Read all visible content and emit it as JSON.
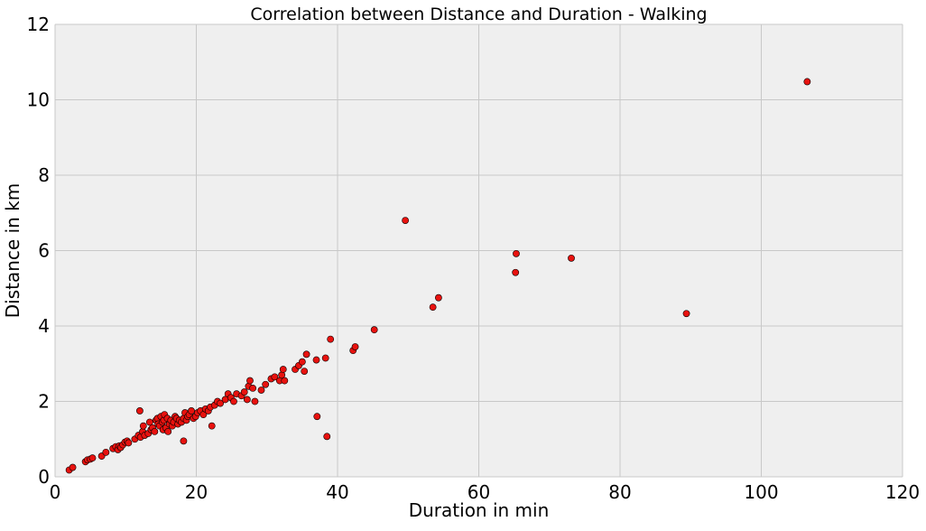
{
  "chart_data": {
    "type": "scatter",
    "title": "Correlation between Distance and Duration - Walking",
    "xlabel": "Duration in min",
    "ylabel": "Distance in km",
    "xlim": [
      0,
      120
    ],
    "ylim": [
      0,
      12
    ],
    "xticks": [
      0,
      20,
      40,
      60,
      80,
      100,
      120
    ],
    "yticks": [
      0,
      2,
      4,
      6,
      8,
      10,
      12
    ],
    "xtick_labels": [
      "0",
      "20",
      "40",
      "60",
      "80",
      "100",
      "120"
    ],
    "ytick_labels": [
      "0",
      "2",
      "4",
      "6",
      "8",
      "10",
      "12"
    ],
    "grid": true,
    "background_color": "#efefef",
    "marker_color": "#e8120f",
    "series": [
      {
        "name": "Walking",
        "x": [
          2.0,
          2.5,
          4.3,
          4.6,
          5.0,
          5.3,
          6.6,
          7.2,
          8.2,
          8.6,
          8.9,
          9.1,
          9.3,
          9.6,
          9.9,
          10.2,
          10.4,
          11.3,
          11.8,
          12.1,
          12.4,
          12.5,
          12.7,
          13.2,
          13.4,
          13.6,
          13.8,
          14.1,
          14.3,
          14.5,
          14.6,
          14.8,
          15.0,
          15.2,
          15.3,
          15.4,
          15.5,
          15.7,
          15.9,
          16.0,
          16.2,
          16.4,
          16.6,
          16.8,
          17.0,
          17.2,
          17.4,
          17.6,
          17.9,
          18.2,
          18.4,
          18.6,
          18.8,
          19.0,
          19.3,
          19.6,
          19.9,
          20.2,
          20.6,
          21.0,
          21.3,
          21.7,
          22.0,
          22.2,
          22.6,
          23.0,
          23.4,
          24.1,
          24.5,
          24.9,
          25.3,
          25.7,
          26.4,
          26.8,
          27.2,
          27.4,
          27.6,
          28.0,
          28.3,
          29.2,
          29.8,
          30.6,
          31.1,
          31.8,
          32.1,
          32.3,
          32.5,
          34.0,
          34.5,
          35.0,
          35.3,
          35.6,
          37.0,
          37.1,
          38.3,
          38.5,
          39.0,
          42.2,
          42.5,
          45.2,
          49.6,
          53.5,
          54.3,
          65.2,
          65.3,
          73.1,
          89.4,
          106.5,
          18.2,
          12.0
        ],
        "y": [
          0.18,
          0.25,
          0.4,
          0.45,
          0.47,
          0.5,
          0.55,
          0.65,
          0.75,
          0.8,
          0.72,
          0.82,
          0.78,
          0.85,
          0.92,
          0.95,
          0.9,
          1.0,
          1.1,
          1.05,
          1.2,
          1.35,
          1.1,
          1.15,
          1.45,
          1.25,
          1.3,
          1.2,
          1.5,
          1.55,
          1.4,
          1.35,
          1.6,
          1.45,
          1.25,
          1.5,
          1.65,
          1.3,
          1.55,
          1.2,
          1.4,
          1.5,
          1.35,
          1.45,
          1.6,
          1.55,
          1.4,
          1.5,
          1.45,
          1.55,
          1.7,
          1.5,
          1.6,
          1.65,
          1.75,
          1.55,
          1.6,
          1.7,
          1.75,
          1.65,
          1.8,
          1.75,
          1.85,
          1.35,
          1.9,
          2.0,
          1.95,
          2.05,
          2.2,
          2.1,
          2.0,
          2.2,
          2.15,
          2.25,
          2.05,
          2.4,
          2.55,
          2.35,
          2.0,
          2.3,
          2.45,
          2.6,
          2.65,
          2.55,
          2.7,
          2.85,
          2.55,
          2.85,
          2.95,
          3.05,
          2.8,
          3.25,
          3.1,
          1.6,
          3.15,
          1.07,
          3.65,
          3.35,
          3.45,
          3.9,
          6.8,
          4.5,
          4.75,
          5.42,
          5.92,
          5.8,
          4.33,
          10.48,
          0.95,
          1.75
        ]
      }
    ]
  }
}
